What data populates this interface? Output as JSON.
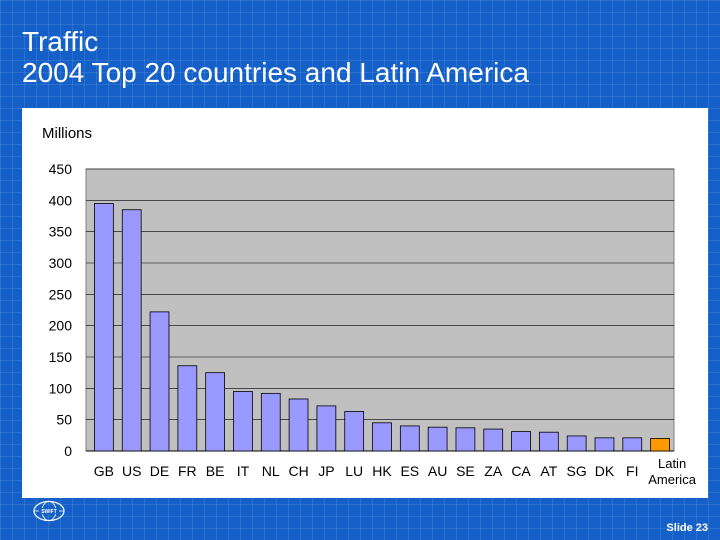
{
  "slide": {
    "title_line1": "Traffic",
    "title_line2": "2004 Top 20 countries and Latin America",
    "footer": "Slide 23",
    "logo_text": "SWIFT"
  },
  "colors": {
    "background": "#1460c8",
    "plot_area": "#c0c0c0",
    "bar": "#9999ff",
    "highlight_bar": "#ff9900",
    "bar_outline": "#000000"
  },
  "chart_data": {
    "type": "bar",
    "ylabel": "Millions",
    "ylim": [
      0,
      450
    ],
    "yticks": [
      0,
      50,
      100,
      150,
      200,
      250,
      300,
      350,
      400,
      450
    ],
    "grid": true,
    "categories": [
      "GB",
      "US",
      "DE",
      "FR",
      "BE",
      "IT",
      "NL",
      "CH",
      "JP",
      "LU",
      "HK",
      "ES",
      "AU",
      "SE",
      "ZA",
      "CA",
      "AT",
      "SG",
      "DK",
      "FI",
      "Latin America"
    ],
    "values": [
      395,
      385,
      222,
      136,
      125,
      95,
      92,
      83,
      72,
      63,
      45,
      40,
      38,
      37,
      35,
      31,
      30,
      24,
      21,
      21,
      20
    ],
    "highlight": "Latin America"
  }
}
